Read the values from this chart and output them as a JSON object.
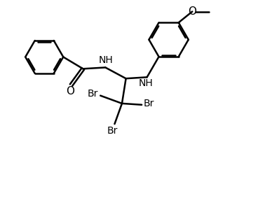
{
  "background_color": "#ffffff",
  "line_color": "#000000",
  "line_width": 1.8,
  "figsize": [
    3.78,
    2.83
  ],
  "dpi": 100,
  "xlim": [
    0,
    10
  ],
  "ylim": [
    0,
    7.5
  ]
}
